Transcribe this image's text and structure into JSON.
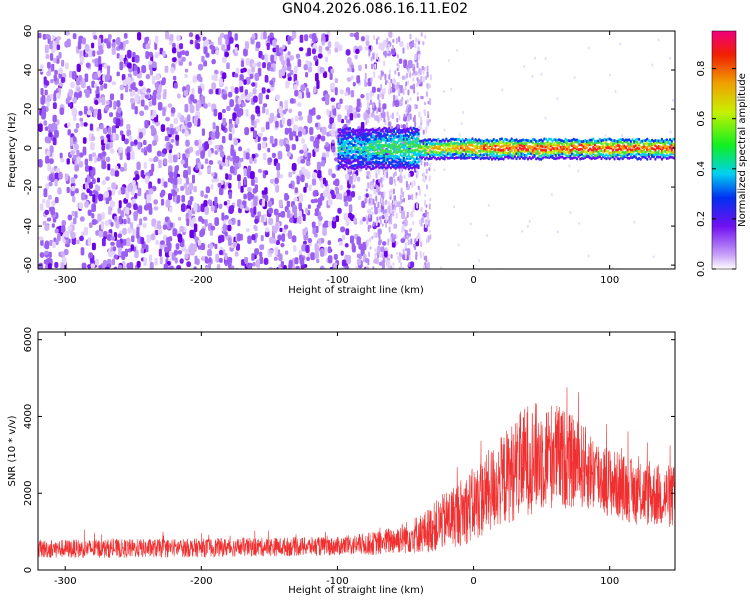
{
  "title": "GN04.2026.086.16.11.E02",
  "colors": {
    "background": "#ffffff",
    "spectrogram_purple": "#7a10f0",
    "ridge_cyan": "#00e0f0",
    "ridge_green": "#40e040",
    "ridge_red": "#ff2020",
    "snr_line": "#f03030"
  },
  "chart_data": [
    {
      "type": "heatmap",
      "title": "",
      "xlabel": "Height of straight line (km)",
      "ylabel": "Frequency (Hz)",
      "xlim": [
        -320,
        148
      ],
      "ylim": [
        -62,
        60
      ],
      "x_ticks": [
        -300,
        -200,
        -100,
        0,
        100
      ],
      "x_tick_labels": [
        "-300",
        "-200",
        "-100",
        "0",
        "100"
      ],
      "y_ticks": [
        -60,
        -40,
        -20,
        0,
        20,
        40,
        60
      ],
      "y_tick_labels": [
        "-60",
        "-40",
        "-20",
        "0",
        "20",
        "40",
        "60"
      ],
      "description_values": {
        "noise_region_x": [
          -320,
          -100
        ],
        "noise_amplitude": 0.2,
        "transition_region_x": [
          -100,
          -35
        ],
        "signal_freq_hz": 0,
        "signal_peak_amplitude": 0.9,
        "signal_start_x": -100
      },
      "colorbar": {
        "label": "Normalized spectral amplitude",
        "range": [
          0,
          0.95
        ],
        "ticks": [
          0.0,
          0.2,
          0.4,
          0.6,
          0.8
        ],
        "tick_labels": [
          "0.0",
          "0.2",
          "0.4",
          "0.6",
          "0.8"
        ]
      }
    },
    {
      "type": "line",
      "title": "",
      "xlabel": "Height of straight line (km)",
      "ylabel": "SNR (10 * v/v)",
      "xlim": [
        -320,
        148
      ],
      "ylim": [
        0,
        6200
      ],
      "x_ticks": [
        -300,
        -200,
        -100,
        0,
        100
      ],
      "x_tick_labels": [
        "-300",
        "-200",
        "-100",
        "0",
        "100"
      ],
      "y_ticks": [
        0,
        2000,
        4000,
        6000
      ],
      "y_tick_labels": [
        "0",
        "2000",
        "4000",
        "6000"
      ],
      "series": [
        {
          "name": "SNR",
          "color": "#f03030",
          "envelope_x": [
            -320,
            -250,
            -200,
            -150,
            -100,
            -70,
            -50,
            -35,
            -20,
            0,
            20,
            40,
            60,
            80,
            100,
            120,
            148
          ],
          "envelope_mean": [
            550,
            560,
            580,
            600,
            620,
            700,
            850,
            1000,
            1300,
            1700,
            2300,
            2900,
            3000,
            2700,
            2300,
            2000,
            1900
          ],
          "envelope_spread": [
            350,
            350,
            350,
            350,
            350,
            450,
            600,
            800,
            1100,
            1400,
            1700,
            2100,
            2000,
            1600,
            1300,
            1200,
            1200
          ]
        }
      ]
    }
  ]
}
